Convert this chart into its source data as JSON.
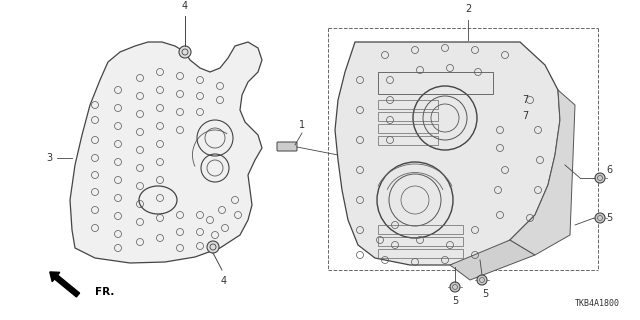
{
  "background_color": "#ffffff",
  "part_number": "TKB4A1800",
  "fig_width": 6.4,
  "fig_height": 3.2,
  "dpi": 100,
  "gray": "#333333",
  "light_gray": "#aaaaaa"
}
